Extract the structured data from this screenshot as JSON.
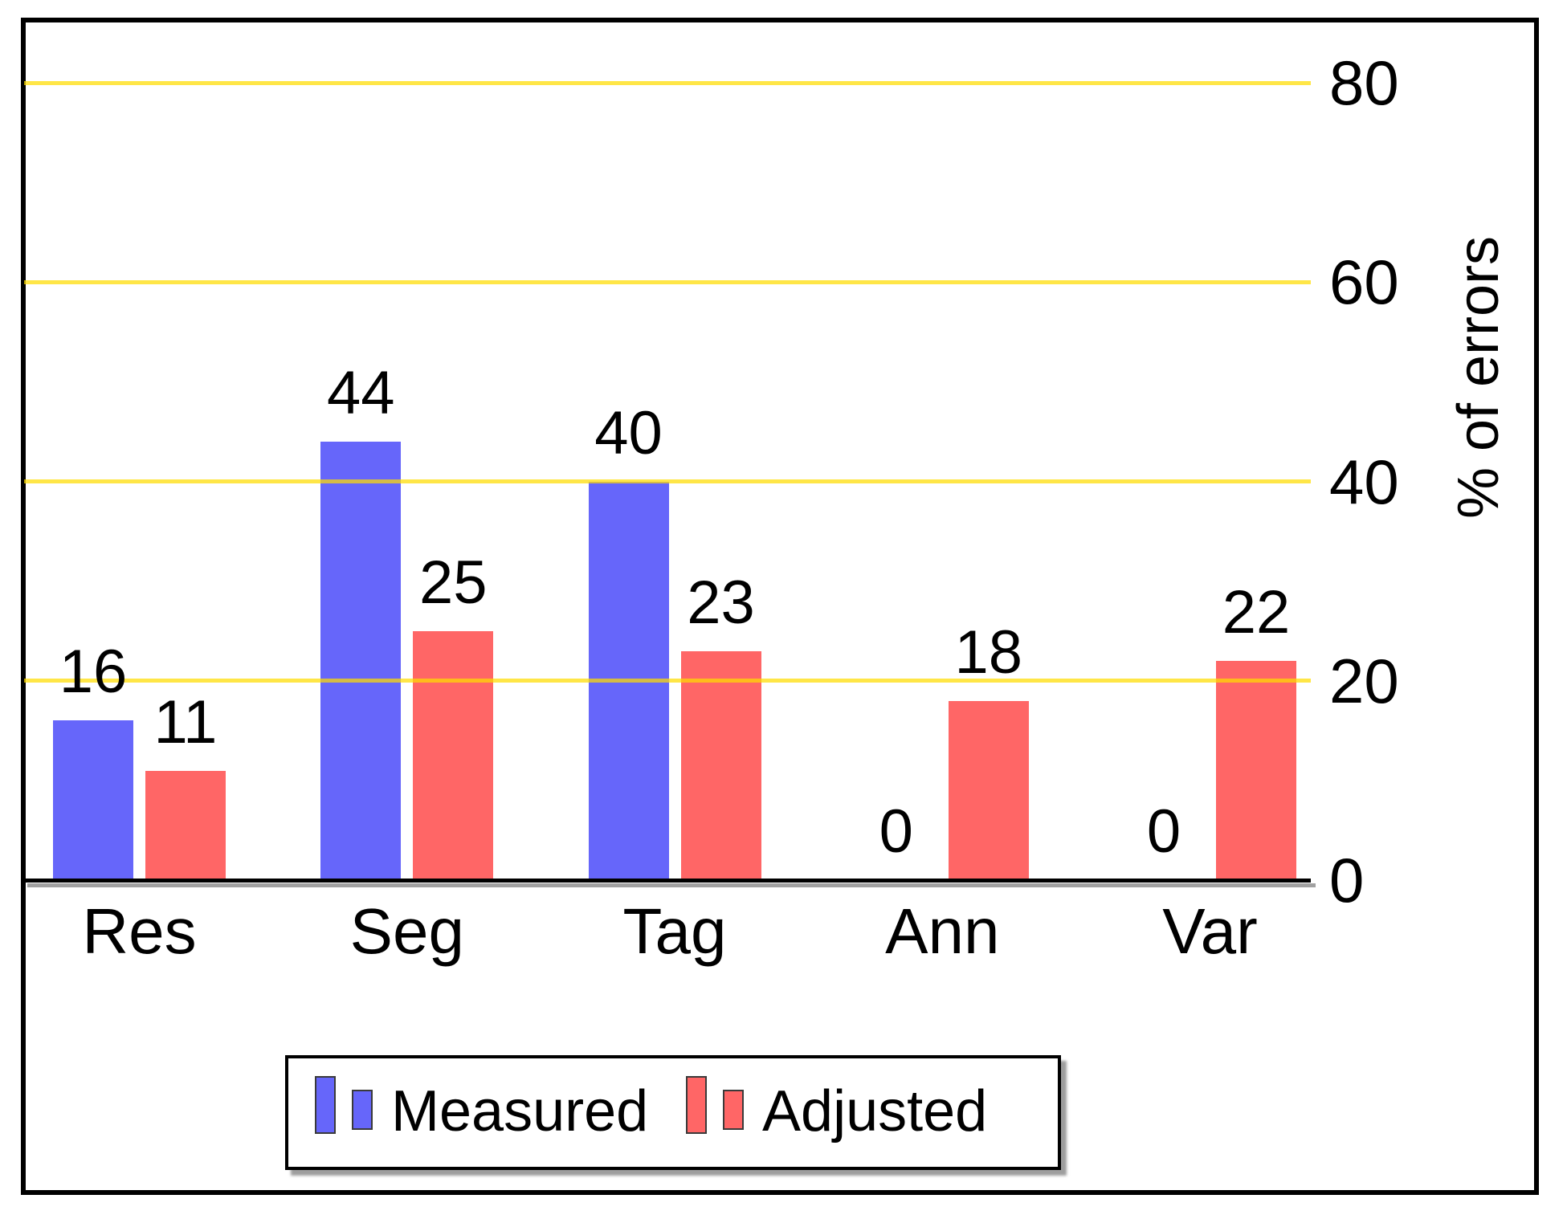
{
  "figure": {
    "background_hex": "#ffffff",
    "frame_color_hex": "#000000",
    "text_color_hex": "#000000"
  },
  "chart_data": {
    "type": "bar",
    "title": "",
    "xlabel": "",
    "ylabel": "% of errors",
    "categories": [
      "Res",
      "Seg",
      "Tag",
      "Ann",
      "Var"
    ],
    "series": [
      {
        "name": "Measured",
        "color_hex": "#6666fa",
        "values": [
          16,
          44,
          40,
          0,
          0
        ]
      },
      {
        "name": "Adjusted",
        "color_hex": "#ff6666",
        "values": [
          11,
          25,
          23,
          18,
          22
        ]
      }
    ],
    "bar_value_labels": [
      "16",
      "11",
      "44",
      "25",
      "40",
      "23",
      "0",
      "18",
      "0",
      "22"
    ],
    "yticks": [
      0,
      20,
      40,
      60,
      80
    ],
    "ytick_labels": [
      "0",
      "20",
      "40",
      "60",
      "80"
    ],
    "ylim": [
      0,
      88
    ],
    "grid": "horizontal-yellow",
    "gridline_color_hex": "#ffdd00",
    "legend_position": "below-plot",
    "legend_entries": [
      "Measured",
      "Adjusted"
    ]
  }
}
